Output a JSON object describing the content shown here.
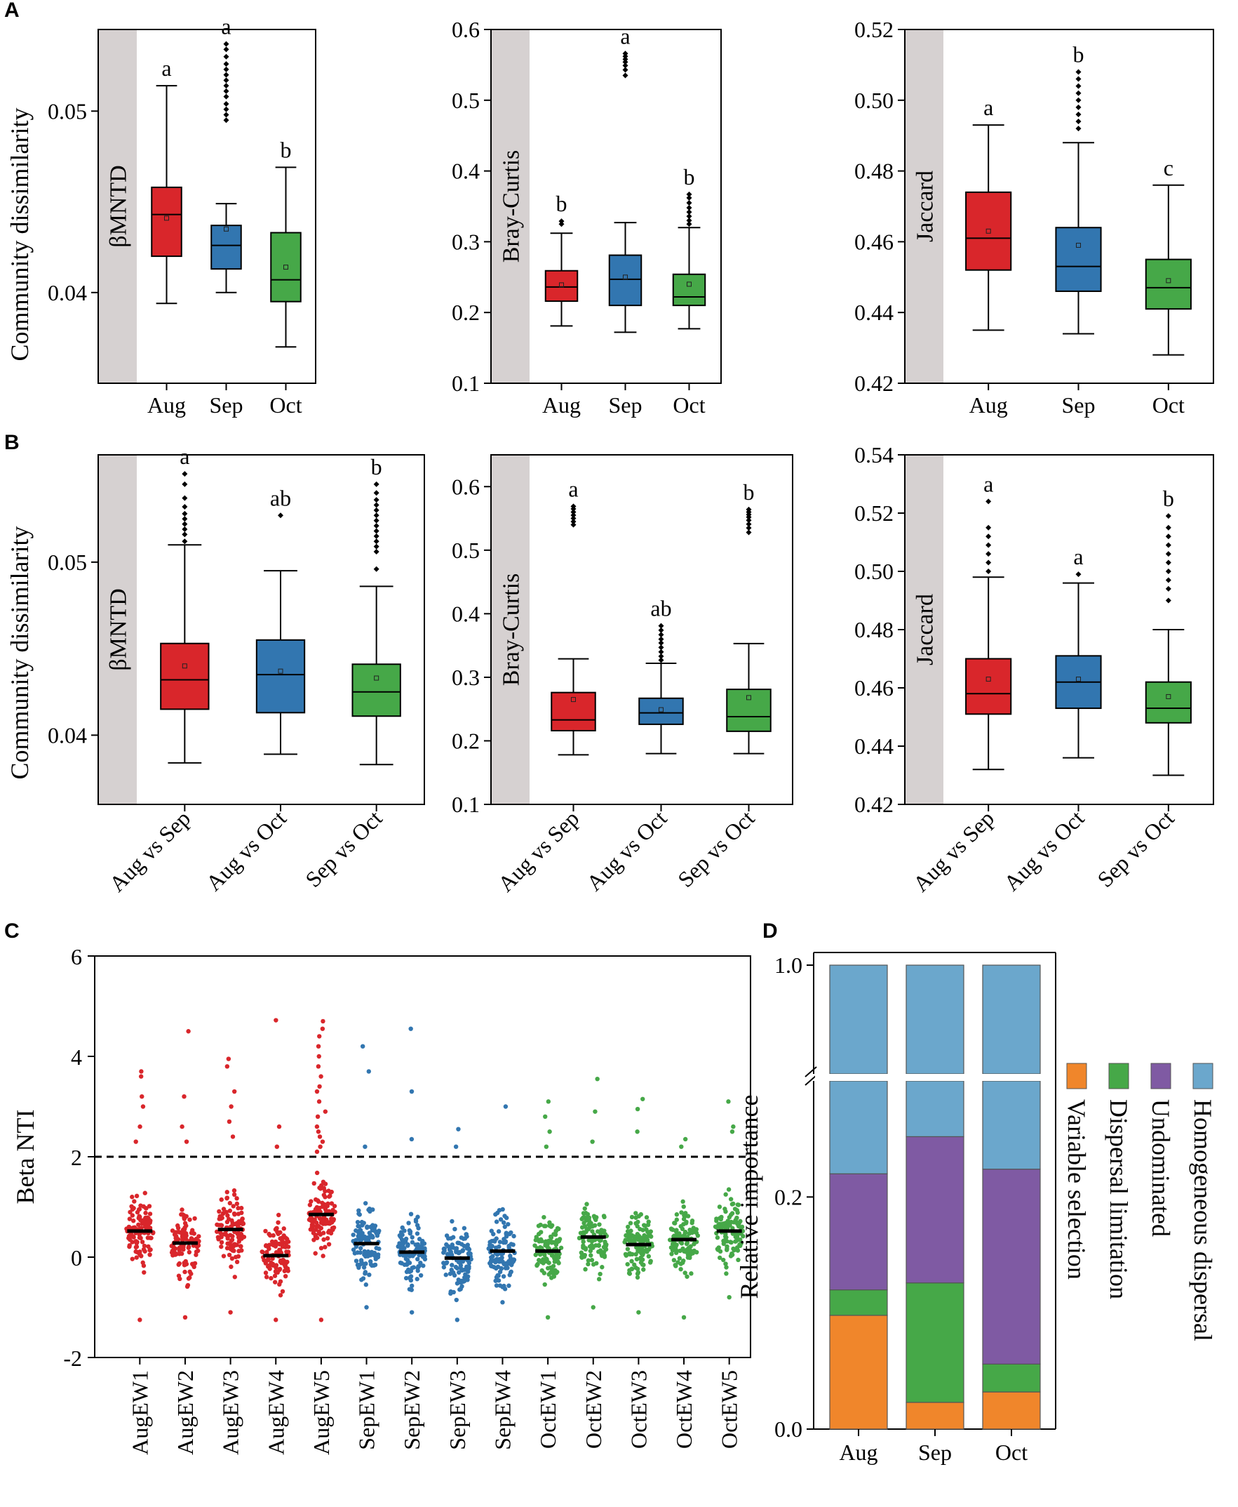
{
  "panel_labels": [
    "A",
    "B",
    "C",
    "D"
  ],
  "colors": {
    "aug": "#d9262b",
    "sep": "#3276b0",
    "oct": "#46a848",
    "strip": "#d6d1d1",
    "variable_selection": "#f0862b",
    "dispersal_limitation": "#46a848",
    "undominated": "#7f5aa3",
    "homogeneous_dispersal": "#6ba7cc"
  },
  "shared_ylabel": "Community dissimilarity",
  "chart_data": [
    {
      "id": "A1",
      "type": "box",
      "strip_label": "βMNTD",
      "categories": [
        "Aug",
        "Sep",
        "Oct"
      ],
      "ylim": [
        0.035,
        0.0545
      ],
      "yticks": [
        "0.04",
        "0.05"
      ],
      "ytick_values": [
        0.04,
        0.05
      ],
      "boxes": [
        {
          "whisker_low": 0.0394,
          "q1": 0.042,
          "median": 0.0443,
          "q3": 0.0458,
          "whisker_high": 0.0514,
          "mean": 0.0441,
          "outliers": [],
          "letter": "a"
        },
        {
          "whisker_low": 0.04,
          "q1": 0.0413,
          "median": 0.0426,
          "q3": 0.0437,
          "whisker_high": 0.0449,
          "mean": 0.0435,
          "outliers": [
            0.0495,
            0.0498,
            0.0501,
            0.0504,
            0.0508,
            0.0511,
            0.0514,
            0.0517,
            0.052,
            0.0523,
            0.0526,
            0.053,
            0.0534,
            0.0537
          ],
          "letter": "a"
        },
        {
          "whisker_low": 0.037,
          "q1": 0.0395,
          "median": 0.0407,
          "q3": 0.0433,
          "whisker_high": 0.0469,
          "mean": 0.0414,
          "outliers": [],
          "letter": "b"
        }
      ]
    },
    {
      "id": "A2",
      "type": "box",
      "strip_label": "Bray-Curtis",
      "categories": [
        "Aug",
        "Sep",
        "Oct"
      ],
      "ylim": [
        0.1,
        0.6
      ],
      "yticks": [
        "0.1",
        "0.2",
        "0.3",
        "0.4",
        "0.5",
        "0.6"
      ],
      "ytick_values": [
        0.1,
        0.2,
        0.3,
        0.4,
        0.5,
        0.6
      ],
      "boxes": [
        {
          "whisker_low": 0.181,
          "q1": 0.216,
          "median": 0.236,
          "q3": 0.259,
          "whisker_high": 0.312,
          "mean": 0.239,
          "outliers": [
            0.325,
            0.329
          ],
          "letter": "b"
        },
        {
          "whisker_low": 0.172,
          "q1": 0.21,
          "median": 0.247,
          "q3": 0.281,
          "whisker_high": 0.327,
          "mean": 0.25,
          "outliers": [
            0.535,
            0.543,
            0.549,
            0.554,
            0.558,
            0.562,
            0.566
          ],
          "letter": "a"
        },
        {
          "whisker_low": 0.177,
          "q1": 0.21,
          "median": 0.222,
          "q3": 0.254,
          "whisker_high": 0.32,
          "mean": 0.24,
          "outliers": [
            0.325,
            0.33,
            0.336,
            0.342,
            0.348,
            0.355,
            0.362,
            0.367
          ],
          "letter": "b"
        }
      ]
    },
    {
      "id": "A3",
      "type": "box",
      "strip_label": "Jaccard",
      "categories": [
        "Aug",
        "Sep",
        "Oct"
      ],
      "ylim": [
        0.42,
        0.52
      ],
      "yticks": [
        "0.42",
        "0.44",
        "0.46",
        "0.48",
        "0.50",
        "0.52"
      ],
      "ytick_values": [
        0.42,
        0.44,
        0.46,
        0.48,
        0.5,
        0.52
      ],
      "boxes": [
        {
          "whisker_low": 0.435,
          "q1": 0.452,
          "median": 0.461,
          "q3": 0.474,
          "whisker_high": 0.493,
          "mean": 0.463,
          "outliers": [],
          "letter": "a"
        },
        {
          "whisker_low": 0.434,
          "q1": 0.446,
          "median": 0.453,
          "q3": 0.464,
          "whisker_high": 0.488,
          "mean": 0.459,
          "outliers": [
            0.492,
            0.494,
            0.496,
            0.498,
            0.5,
            0.502,
            0.504,
            0.506,
            0.508
          ],
          "letter": "b"
        },
        {
          "whisker_low": 0.428,
          "q1": 0.441,
          "median": 0.447,
          "q3": 0.455,
          "whisker_high": 0.476,
          "mean": 0.449,
          "outliers": [],
          "letter": "c"
        }
      ]
    },
    {
      "id": "B1",
      "type": "box",
      "strip_label": "βMNTD",
      "categories": [
        "Aug vs Sep",
        "Aug vs Oct",
        "Sep vs Oct"
      ],
      "ylim": [
        0.036,
        0.0562
      ],
      "yticks": [
        "0.04",
        "0.05"
      ],
      "ytick_values": [
        0.04,
        0.05
      ],
      "boxes": [
        {
          "whisker_low": 0.0384,
          "q1": 0.0415,
          "median": 0.0432,
          "q3": 0.0453,
          "whisker_high": 0.051,
          "mean": 0.044,
          "outliers": [
            0.0512,
            0.0516,
            0.0519,
            0.0522,
            0.0525,
            0.0528,
            0.0532,
            0.0537,
            0.0545,
            0.0551
          ],
          "letter": "a"
        },
        {
          "whisker_low": 0.0389,
          "q1": 0.0413,
          "median": 0.0435,
          "q3": 0.0455,
          "whisker_high": 0.0495,
          "mean": 0.0437,
          "outliers": [
            0.0527
          ],
          "letter": "ab"
        },
        {
          "whisker_low": 0.0383,
          "q1": 0.0411,
          "median": 0.0425,
          "q3": 0.0441,
          "whisker_high": 0.0486,
          "mean": 0.0433,
          "outliers": [
            0.0496,
            0.0506,
            0.0509,
            0.0512,
            0.0515,
            0.0518,
            0.0521,
            0.0524,
            0.0527,
            0.053,
            0.0533,
            0.0536,
            0.054,
            0.0545
          ],
          "letter": "b"
        }
      ]
    },
    {
      "id": "B2",
      "type": "box",
      "strip_label": "Bray-Curtis",
      "categories": [
        "Aug vs Sep",
        "Aug vs Oct",
        "Sep vs Oct"
      ],
      "ylim": [
        0.1,
        0.65
      ],
      "yticks": [
        "0.1",
        "0.2",
        "0.3",
        "0.4",
        "0.5",
        "0.6"
      ],
      "ytick_values": [
        0.1,
        0.2,
        0.3,
        0.4,
        0.5,
        0.6
      ],
      "boxes": [
        {
          "whisker_low": 0.178,
          "q1": 0.216,
          "median": 0.233,
          "q3": 0.276,
          "whisker_high": 0.329,
          "mean": 0.265,
          "outliers": [
            0.54,
            0.545,
            0.55,
            0.555,
            0.56,
            0.565,
            0.569
          ],
          "letter": "a"
        },
        {
          "whisker_low": 0.18,
          "q1": 0.226,
          "median": 0.244,
          "q3": 0.267,
          "whisker_high": 0.322,
          "mean": 0.249,
          "outliers": [
            0.327,
            0.333,
            0.34,
            0.347,
            0.354,
            0.36,
            0.367,
            0.374,
            0.381
          ],
          "letter": "ab"
        },
        {
          "whisker_low": 0.18,
          "q1": 0.215,
          "median": 0.238,
          "q3": 0.281,
          "whisker_high": 0.353,
          "mean": 0.268,
          "outliers": [
            0.528,
            0.535,
            0.541,
            0.547,
            0.552,
            0.556,
            0.56,
            0.564
          ],
          "letter": "b"
        }
      ]
    },
    {
      "id": "B3",
      "type": "box",
      "strip_label": "Jaccard",
      "categories": [
        "Aug vs Sep",
        "Aug vs Oct",
        "Sep vs Oct"
      ],
      "ylim": [
        0.42,
        0.54
      ],
      "yticks": [
        "0.42",
        "0.44",
        "0.46",
        "0.48",
        "0.50",
        "0.52",
        "0.54"
      ],
      "ytick_values": [
        0.42,
        0.44,
        0.46,
        0.48,
        0.5,
        0.52,
        0.54
      ],
      "boxes": [
        {
          "whisker_low": 0.432,
          "q1": 0.451,
          "median": 0.458,
          "q3": 0.47,
          "whisker_high": 0.498,
          "mean": 0.463,
          "outliers": [
            0.5,
            0.503,
            0.506,
            0.509,
            0.512,
            0.515,
            0.524
          ],
          "letter": "a"
        },
        {
          "whisker_low": 0.436,
          "q1": 0.453,
          "median": 0.462,
          "q3": 0.471,
          "whisker_high": 0.496,
          "mean": 0.463,
          "outliers": [
            0.499
          ],
          "letter": "a"
        },
        {
          "whisker_low": 0.43,
          "q1": 0.448,
          "median": 0.453,
          "q3": 0.462,
          "whisker_high": 0.48,
          "mean": 0.457,
          "outliers": [
            0.49,
            0.494,
            0.497,
            0.5,
            0.503,
            0.506,
            0.509,
            0.512,
            0.515,
            0.519
          ],
          "letter": "b"
        }
      ]
    },
    {
      "id": "C",
      "type": "beeswarm",
      "ylabel": "Beta NTI",
      "ylim": [
        -2,
        6
      ],
      "yticks": [
        "-2",
        "0",
        "2",
        "4",
        "6"
      ],
      "ytick_values": [
        -2,
        0,
        2,
        4,
        6
      ],
      "threshold": 2,
      "groups": [
        {
          "label": "AugEW1",
          "month": "aug",
          "mean": 0.52,
          "min": -1.25,
          "max": 3.75,
          "outliers": [
            3.7,
            3.6,
            3.2,
            3.0,
            2.6,
            2.3
          ]
        },
        {
          "label": "AugEW2",
          "month": "aug",
          "mean": 0.28,
          "min": -1.2,
          "max": 4.5,
          "outliers": [
            4.5,
            3.2,
            2.6,
            2.3
          ]
        },
        {
          "label": "AugEW3",
          "month": "aug",
          "mean": 0.55,
          "min": -1.1,
          "max": 3.95,
          "outliers": [
            3.95,
            3.8,
            3.3,
            3.0,
            2.7,
            2.4
          ]
        },
        {
          "label": "AugEW4",
          "month": "aug",
          "mean": 0.03,
          "min": -1.25,
          "max": 4.72,
          "outliers": [
            4.72,
            2.6,
            2.2
          ]
        },
        {
          "label": "AugEW5",
          "month": "aug",
          "mean": 0.85,
          "min": -1.25,
          "max": 4.7,
          "outliers": [
            4.7,
            4.55,
            4.4,
            4.2,
            4.0,
            3.8,
            3.6,
            3.4,
            3.3,
            3.1,
            2.9,
            2.8,
            2.6,
            2.5,
            2.4,
            2.3,
            2.2,
            2.1
          ]
        },
        {
          "label": "SepEW1",
          "month": "sep",
          "mean": 0.27,
          "min": -1.0,
          "max": 4.2,
          "outliers": [
            4.2,
            3.7,
            2.2
          ]
        },
        {
          "label": "SepEW2",
          "month": "sep",
          "mean": 0.1,
          "min": -1.1,
          "max": 4.55,
          "outliers": [
            4.55,
            3.3,
            2.35
          ]
        },
        {
          "label": "SepEW3",
          "month": "sep",
          "mean": -0.02,
          "min": -1.25,
          "max": 2.55,
          "outliers": [
            2.55,
            2.2
          ]
        },
        {
          "label": "SepEW4",
          "month": "sep",
          "mean": 0.12,
          "min": -0.9,
          "max": 3.0,
          "outliers": [
            3.0
          ]
        },
        {
          "label": "OctEW1",
          "month": "oct",
          "mean": 0.12,
          "min": -1.2,
          "max": 3.1,
          "outliers": [
            3.1,
            2.8,
            2.5,
            2.2
          ]
        },
        {
          "label": "OctEW2",
          "month": "oct",
          "mean": 0.4,
          "min": -1.0,
          "max": 3.55,
          "outliers": [
            3.55,
            2.9,
            2.3
          ]
        },
        {
          "label": "OctEW3",
          "month": "oct",
          "mean": 0.25,
          "min": -1.1,
          "max": 3.15,
          "outliers": [
            3.15,
            2.95,
            2.5
          ]
        },
        {
          "label": "OctEW4",
          "month": "oct",
          "mean": 0.35,
          "min": -1.2,
          "max": 2.35,
          "outliers": [
            2.35,
            2.2
          ]
        },
        {
          "label": "OctEW5",
          "month": "oct",
          "mean": 0.52,
          "min": -0.8,
          "max": 3.1,
          "outliers": [
            3.1,
            2.6,
            2.5
          ]
        }
      ]
    },
    {
      "id": "D",
      "type": "stacked-bar",
      "ylabel": "Relative importance",
      "yticks": [
        "0.0",
        "0.2",
        "1.0"
      ],
      "ytick_values": [
        0.0,
        0.2,
        1.0
      ],
      "axis_break": true,
      "categories": [
        "Aug",
        "Sep",
        "Oct"
      ],
      "series": [
        {
          "name": "Variable selection",
          "key": "variable_selection",
          "values": [
            0.098,
            0.023,
            0.032
          ]
        },
        {
          "name": "Dispersal limitation",
          "key": "dispersal_limitation",
          "values": [
            0.022,
            0.103,
            0.024
          ]
        },
        {
          "name": "Undominated",
          "key": "undominated",
          "values": [
            0.1,
            0.126,
            0.168
          ]
        },
        {
          "name": "Homogeneous dispersal",
          "key": "homogeneous_dispersal",
          "values": [
            0.78,
            0.748,
            0.776
          ]
        }
      ]
    }
  ]
}
